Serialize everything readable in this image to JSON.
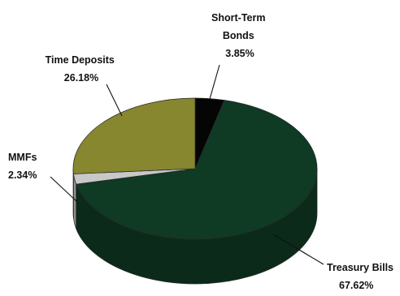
{
  "chart_data": {
    "type": "pie",
    "title": "",
    "three_d": true,
    "legend": "none",
    "slices": [
      {
        "label": "Short-Term Bonds",
        "label_lines": [
          "Short-Term",
          "Bonds"
        ],
        "value": 3.85,
        "value_label": "3.85%",
        "color": "#050505"
      },
      {
        "label": "Treasury Bills",
        "label_lines": [
          "Treasury Bills"
        ],
        "value": 67.62,
        "value_label": "67.62%",
        "color": "#0f3a24"
      },
      {
        "label": "MMFs",
        "label_lines": [
          "MMFs"
        ],
        "value": 2.34,
        "value_label": "2.34%",
        "color": "#c8c8c8"
      },
      {
        "label": "Time Deposits",
        "label_lines": [
          "Time Deposits"
        ],
        "value": 26.18,
        "value_label": "26.18%",
        "color": "#86872e"
      }
    ]
  }
}
